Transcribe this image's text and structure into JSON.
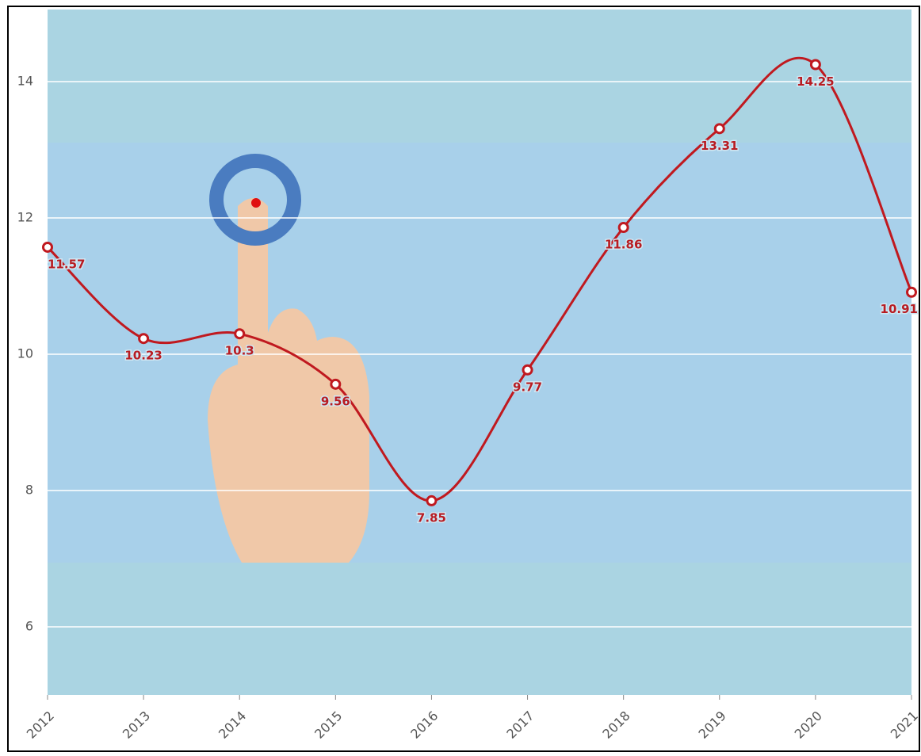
{
  "chart_data": {
    "type": "line",
    "categories": [
      "2012",
      "2013",
      "2014",
      "2015",
      "2016",
      "2017",
      "2018",
      "2019",
      "2020",
      "2021"
    ],
    "series": [
      {
        "color": "#c0191f",
        "values": [
          11.57,
          10.23,
          10.3,
          9.56,
          7.85,
          9.77,
          11.86,
          13.31,
          14.25,
          10.91
        ]
      }
    ],
    "ylim": [
      5,
      15
    ],
    "yticks": [
      6,
      8,
      10,
      12,
      14
    ],
    "grid": true
  }
}
